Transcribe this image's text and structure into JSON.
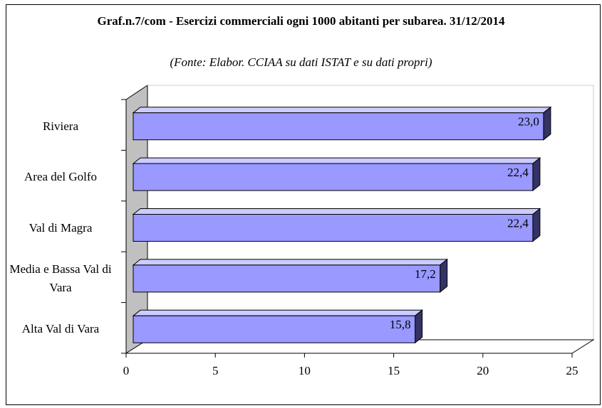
{
  "chart_data": {
    "type": "bar",
    "orientation": "horizontal",
    "three_d": true,
    "title": "Graf.n.7/com - Esercizi commerciali ogni 1000 abitanti per subarea. 31/12/2014",
    "subtitle": "(Fonte: Elabor. CCIAA su dati ISTAT e su dati propri)",
    "categories": [
      "Riviera",
      "Area del Golfo",
      "Val di Magra",
      "Media e Bassa Val di Vara",
      "Alta Val di Vara"
    ],
    "values": [
      23.0,
      22.4,
      22.4,
      17.2,
      15.8
    ],
    "value_labels": [
      "23,0",
      "22,4",
      "22,4",
      "17,2",
      "15,8"
    ],
    "color": "#9999ff",
    "xlim": [
      0,
      25
    ],
    "xticks": [
      0,
      5,
      10,
      15,
      20,
      25
    ],
    "grid": false
  }
}
